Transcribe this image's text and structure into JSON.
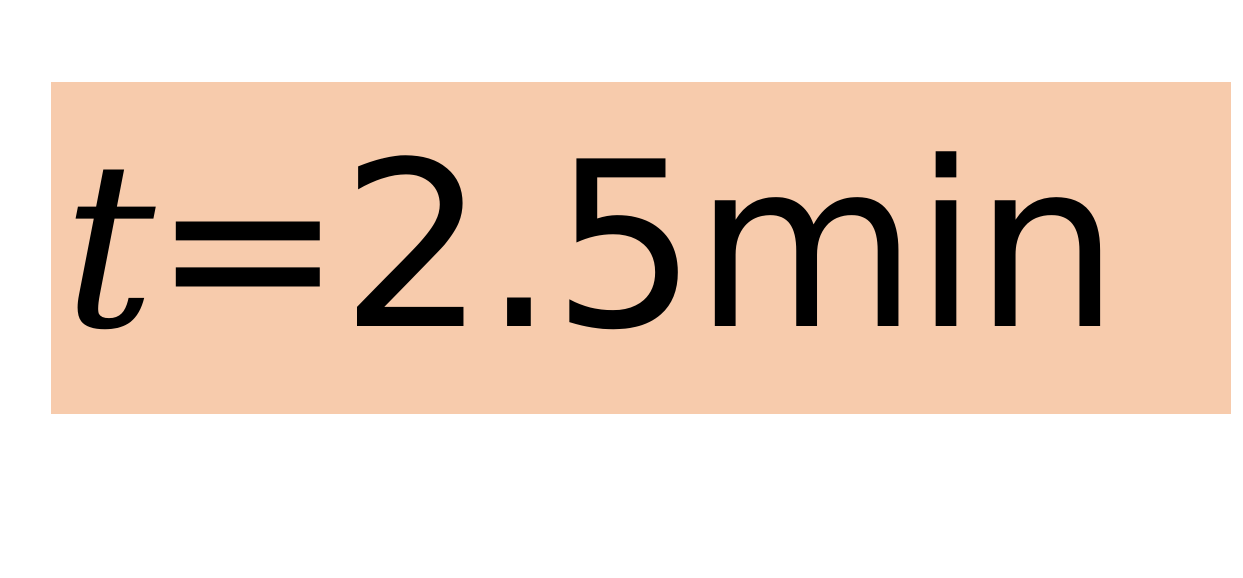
{
  "label": {
    "variable": "t",
    "equals": "=",
    "value": "2.5",
    "unit": "min"
  },
  "colors": {
    "box_background": "#F7CBAC",
    "text": "#000000",
    "page_background": "#FFFFFF"
  }
}
